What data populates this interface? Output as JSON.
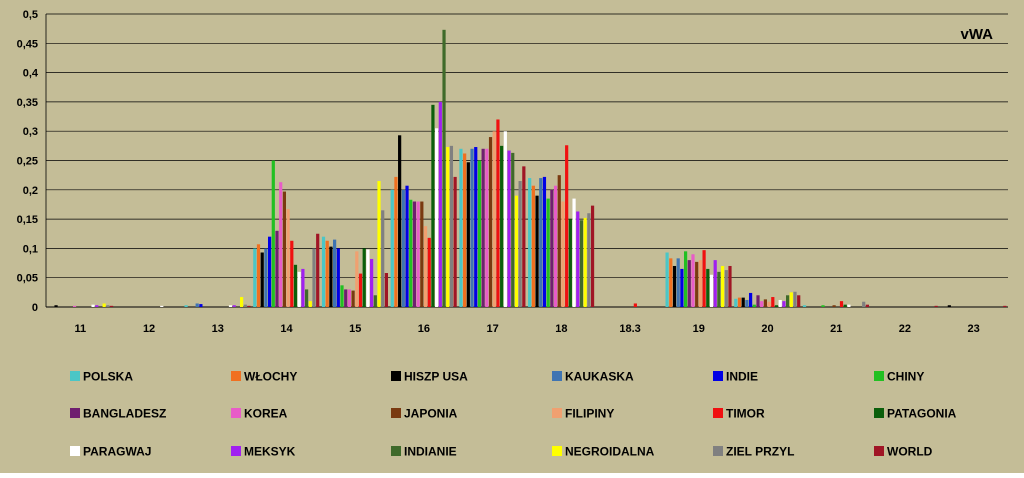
{
  "chart_data": {
    "type": "bar",
    "title": "vWA",
    "xlabel": "",
    "ylabel": "",
    "ylim": [
      0,
      0.5
    ],
    "yticks": [
      "0",
      "0,05",
      "0,1",
      "0,15",
      "0,2",
      "0,25",
      "0,3",
      "0,35",
      "0,4",
      "0,45",
      "0,5"
    ],
    "categories": [
      "11",
      "12",
      "13",
      "14",
      "15",
      "16",
      "17",
      "18",
      "18.3",
      "19",
      "20",
      "21",
      "22",
      "23"
    ],
    "grid": true,
    "legend_position": "bottom",
    "series": [
      {
        "name": "POLSKA",
        "color": "#4bc6c6",
        "values": [
          0,
          0,
          0.003,
          0.1,
          0.12,
          0.2,
          0.27,
          0.22,
          0,
          0.093,
          0.014,
          0.003,
          0,
          0
        ]
      },
      {
        "name": "WŁOCHY",
        "color": "#f07020",
        "values": [
          0,
          0,
          0,
          0.107,
          0.113,
          0.222,
          0.262,
          0.207,
          0,
          0.083,
          0.016,
          0,
          0,
          0
        ]
      },
      {
        "name": "HISZP USA",
        "color": "#000000",
        "values": [
          0.003,
          0,
          0,
          0.093,
          0.103,
          0.293,
          0.247,
          0.19,
          0,
          0.07,
          0.016,
          0,
          0,
          0.003
        ]
      },
      {
        "name": "KAUKASKA",
        "color": "#3f74b2",
        "values": [
          0,
          0,
          0.006,
          0.1,
          0.115,
          0.2,
          0.27,
          0.22,
          0,
          0.083,
          0.012,
          0,
          0,
          0
        ]
      },
      {
        "name": "INDIE",
        "color": "#0000e6",
        "values": [
          0,
          0,
          0.005,
          0.12,
          0.1,
          0.207,
          0.273,
          0.222,
          0,
          0.065,
          0.024,
          0,
          0,
          0
        ]
      },
      {
        "name": "CHINY",
        "color": "#22c022",
        "values": [
          0,
          0,
          0,
          0.25,
          0.037,
          0.183,
          0.25,
          0.185,
          0,
          0.095,
          0.004,
          0.003,
          0,
          0
        ]
      },
      {
        "name": "BANGLADESZ",
        "color": "#6f1f6f",
        "values": [
          0,
          0,
          0,
          0.13,
          0.03,
          0.18,
          0.27,
          0.2,
          0,
          0.08,
          0.02,
          0,
          0,
          0
        ]
      },
      {
        "name": "KOREA",
        "color": "#e85cc8",
        "values": [
          0.002,
          0,
          0,
          0.213,
          0.03,
          0.18,
          0.27,
          0.207,
          0,
          0.09,
          0.01,
          0,
          0,
          0
        ]
      },
      {
        "name": "JAPONIA",
        "color": "#7a3a10",
        "values": [
          0,
          0,
          0,
          0.197,
          0.028,
          0.18,
          0.29,
          0.225,
          0,
          0.077,
          0.013,
          0.003,
          0,
          0
        ]
      },
      {
        "name": "FILIPINY",
        "color": "#f0a070",
        "values": [
          0,
          0,
          0,
          0.167,
          0.095,
          0.138,
          0.3,
          0.18,
          0,
          0.08,
          0.009,
          0,
          0,
          0
        ]
      },
      {
        "name": "TIMOR",
        "color": "#f01010",
        "values": [
          0,
          0,
          0,
          0.113,
          0.057,
          0.118,
          0.32,
          0.276,
          0.006,
          0.097,
          0.017,
          0.01,
          0,
          0
        ]
      },
      {
        "name": "PATAGONIA",
        "color": "#0b5f0b",
        "values": [
          0,
          0,
          0,
          0.072,
          0.1,
          0.345,
          0.275,
          0.15,
          0,
          0.065,
          0.003,
          0.004,
          0,
          0
        ]
      },
      {
        "name": "PARAGWAJ",
        "color": "#ffffff",
        "values": [
          0.004,
          0.002,
          0.003,
          0.06,
          0.098,
          0.305,
          0.3,
          0.185,
          0,
          0.055,
          0.012,
          0.004,
          0,
          0
        ]
      },
      {
        "name": "MEKSYK",
        "color": "#a020f0",
        "values": [
          0.003,
          0,
          0.003,
          0.065,
          0.082,
          0.35,
          0.267,
          0.163,
          0,
          0.08,
          0.01,
          0,
          0,
          0
        ]
      },
      {
        "name": "INDIANIE",
        "color": "#3f6a2a",
        "values": [
          0,
          0,
          0,
          0.03,
          0.02,
          0.473,
          0.263,
          0.148,
          0,
          0.06,
          0.02,
          0,
          0,
          0
        ]
      },
      {
        "name": "NEGROIDALNA",
        "color": "#ffff00",
        "values": [
          0.006,
          0,
          0.017,
          0.01,
          0.215,
          0.273,
          0.19,
          0.152,
          0,
          0.07,
          0.025,
          0,
          0,
          0
        ]
      },
      {
        "name": "ZIEL PRZYL",
        "color": "#808080",
        "values": [
          0.003,
          0,
          0.004,
          0.1,
          0.165,
          0.275,
          0.215,
          0.16,
          0,
          0.063,
          0.026,
          0.009,
          0,
          0
        ]
      },
      {
        "name": "WORLD",
        "color": "#a01525",
        "values": [
          0.002,
          0,
          0.002,
          0.125,
          0.058,
          0.222,
          0.24,
          0.173,
          0,
          0.07,
          0.02,
          0.004,
          0.002,
          0.002
        ]
      }
    ]
  }
}
